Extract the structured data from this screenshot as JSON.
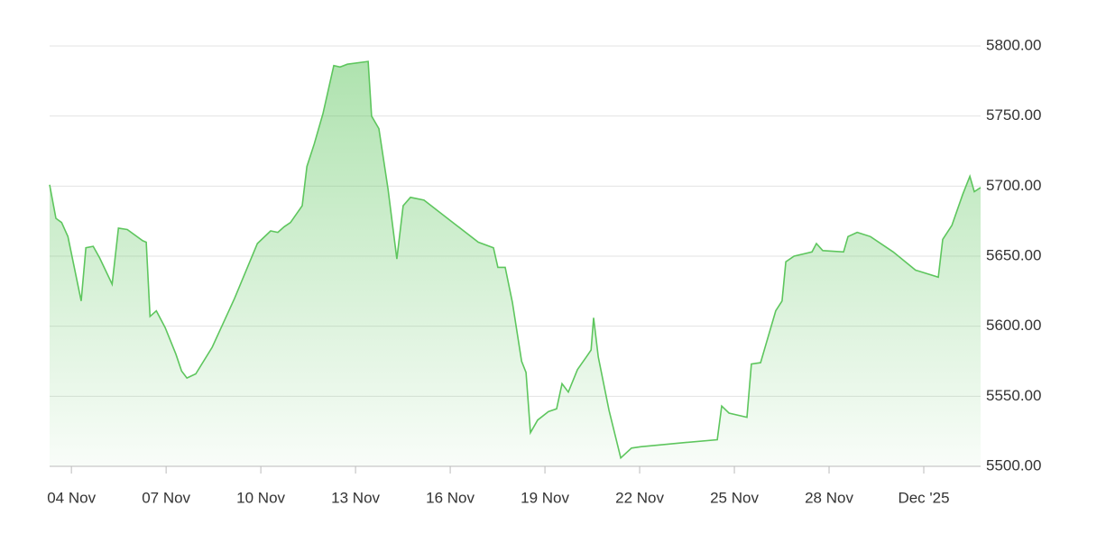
{
  "chart_data": {
    "type": "area",
    "color": "#5ec65e",
    "x": [
      3.31,
      3.51,
      3.69,
      3.89,
      4.31,
      4.46,
      4.69,
      4.89,
      5.29,
      5.49,
      5.77,
      6.26,
      6.37,
      6.49,
      6.69,
      6.97,
      7.31,
      7.49,
      7.66,
      7.94,
      8.46,
      9.17,
      9.89,
      10.31,
      10.54,
      10.74,
      10.94,
      11.31,
      11.46,
      11.69,
      11.97,
      12.31,
      12.51,
      12.74,
      13.4,
      13.51,
      13.74,
      14.03,
      14.31,
      14.51,
      14.74,
      15.17,
      16.03,
      16.89,
      17.37,
      17.51,
      17.74,
      17.97,
      18.26,
      18.4,
      18.54,
      18.77,
      19.11,
      19.37,
      19.54,
      19.74,
      20.03,
      20.31,
      20.46,
      20.54,
      20.69,
      21.03,
      21.4,
      21.74,
      22.03,
      23.46,
      24.46,
      24.6,
      24.83,
      25.4,
      25.54,
      25.83,
      26.31,
      26.51,
      26.63,
      26.89,
      27.46,
      27.6,
      27.8,
      28.46,
      28.6,
      28.89,
      29.31,
      30.03,
      30.74,
      31.46,
      31.6,
      31.89,
      32.23,
      32.46,
      32.6,
      32.8
    ],
    "values": [
      5701,
      5677,
      5674,
      5664,
      5618,
      5656,
      5657,
      5649,
      5630,
      5670,
      5669,
      5661,
      5660,
      5607,
      5611,
      5599,
      5580,
      5568,
      5563,
      5566,
      5585,
      5620,
      5659,
      5668,
      5667,
      5671,
      5674,
      5686,
      5714,
      5730,
      5752,
      5786,
      5785,
      5787,
      5789,
      5750,
      5741,
      5698,
      5648,
      5686,
      5692,
      5690,
      5675,
      5660,
      5656,
      5642,
      5642,
      5617,
      5575,
      5567,
      5524,
      5533,
      5539,
      5541,
      5559,
      5553,
      5569,
      5578,
      5583,
      5606,
      5578,
      5540,
      5506,
      5513,
      5514,
      5517,
      5519,
      5543,
      5538,
      5535,
      5573,
      5574,
      5611,
      5618,
      5646,
      5650,
      5653,
      5659,
      5654,
      5653,
      5664,
      5667,
      5664,
      5653,
      5640,
      5635,
      5662,
      5672,
      5694,
      5707,
      5696,
      5699
    ],
    "xlim": [
      3.31,
      32.8
    ],
    "xticks": [
      {
        "value": 4,
        "label": "04 Nov"
      },
      {
        "value": 7,
        "label": "07 Nov"
      },
      {
        "value": 10,
        "label": "10 Nov"
      },
      {
        "value": 13,
        "label": "13 Nov"
      },
      {
        "value": 16,
        "label": "16 Nov"
      },
      {
        "value": 19,
        "label": "19 Nov"
      },
      {
        "value": 22,
        "label": "22 Nov"
      },
      {
        "value": 25,
        "label": "25 Nov"
      },
      {
        "value": 28,
        "label": "28 Nov"
      },
      {
        "value": 31,
        "label": "Dec '25"
      }
    ],
    "ylim": [
      5500,
      5800
    ],
    "yticks": [
      {
        "value": 5500,
        "label": "5500.00"
      },
      {
        "value": 5550,
        "label": "5550.00"
      },
      {
        "value": 5600,
        "label": "5600.00"
      },
      {
        "value": 5650,
        "label": "5650.00"
      },
      {
        "value": 5700,
        "label": "5700.00"
      },
      {
        "value": 5750,
        "label": "5750.00"
      },
      {
        "value": 5800,
        "label": "5800.00"
      }
    ],
    "grid": true
  }
}
